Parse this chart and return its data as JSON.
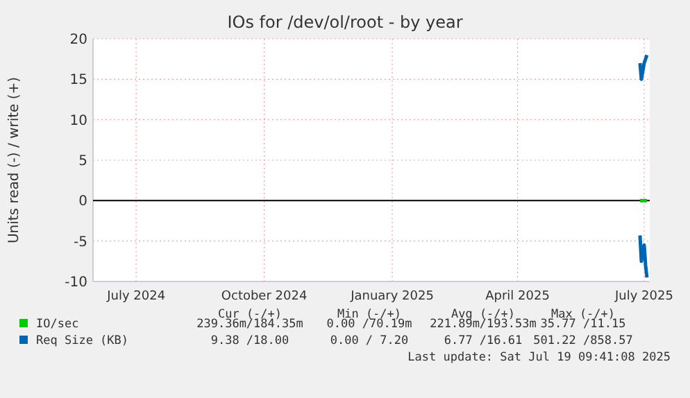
{
  "chart_data": {
    "type": "line",
    "title": "IOs for /dev/ol/root - by year",
    "ylabel": "Units read (-) / write (+)",
    "xlim": [
      "2024-05-31",
      "2025-07-05"
    ],
    "xticks": [
      {
        "value": "2024-07-01",
        "label": "July 2024"
      },
      {
        "value": "2024-10-01",
        "label": "October 2024"
      },
      {
        "value": "2025-01-01",
        "label": "January 2025"
      },
      {
        "value": "2025-04-01",
        "label": "April 2025"
      },
      {
        "value": "2025-07-01",
        "label": "July 2025"
      }
    ],
    "ylim": [
      -10,
      20
    ],
    "yticks": [
      -10,
      -5,
      0,
      5,
      10,
      15,
      20
    ],
    "grid": true,
    "legend": "bottom",
    "marker": "none",
    "line_style": "solid",
    "ref_lines": [
      {
        "axis": "y",
        "value": 0,
        "color": "#000000"
      }
    ],
    "series": [
      {
        "name": "IO/sec",
        "color": "#00cc00",
        "x": [
          "2025-06-28",
          "2025-07-03"
        ],
        "values": [
          0,
          0
        ]
      },
      {
        "name": "Req Size (KB)",
        "color": "#0066b3",
        "x": [
          "2025-06-28",
          "2025-06-29",
          "2025-07-01",
          "2025-07-03"
        ],
        "values": [
          17,
          15,
          17,
          18
        ]
      },
      {
        "color": "#0066b3",
        "x": [
          "2025-06-28",
          "2025-06-29",
          "2025-07-01",
          "2025-07-02",
          "2025-07-03"
        ],
        "values": [
          -4.3,
          -7.5,
          -5.5,
          -8,
          -9.5
        ]
      }
    ],
    "annotations": [
      "Cur (-/+)",
      "Min (-/+)",
      "Avg (-/+)",
      "Max (-/+)",
      "239.36m/184.35m",
      "0.00 /70.19m",
      "221.89m/193.53m",
      "35.77 /11.15",
      "9.38 /18.00",
      "0.00 / 7.20",
      "6.77 /16.61",
      "501.22 /858.57",
      "Last update: Sat Jul 19 09:41:08 2025"
    ]
  }
}
